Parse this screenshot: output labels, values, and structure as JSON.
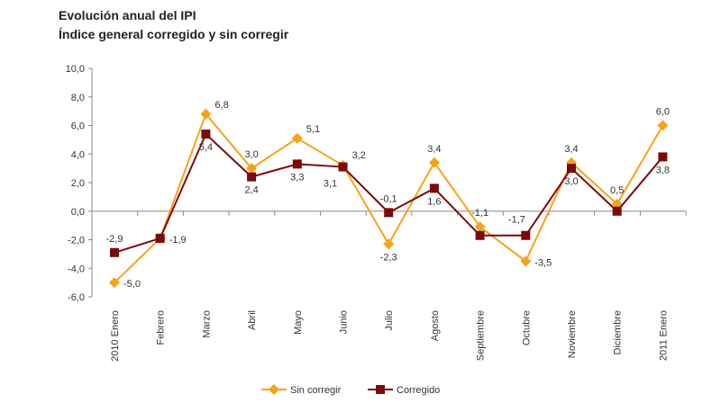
{
  "chart_data": {
    "type": "line",
    "title": "Evolución anual del IPI",
    "subtitle": "Índice general corregido y sin corregir",
    "categories": [
      "2010 Enero",
      "Febrero",
      "Marzo",
      "Abril",
      "Mayo",
      "Junio",
      "Julio",
      "Agosto",
      "Septiembre",
      "Octubre",
      "Noviembre",
      "Diciembre",
      "2011 Enero"
    ],
    "ylim": [
      -6,
      10
    ],
    "yticks": [
      "10,0",
      "8,0",
      "6,0",
      "4,0",
      "2,0",
      "0,0",
      "-2,0",
      "-4,0",
      "-6,0"
    ],
    "grid": false,
    "legend": "bottom",
    "series": [
      {
        "name": "Sin corregir",
        "color": "#F7A21B",
        "marker": "diamond",
        "values": [
          -5.0,
          -1.9,
          6.8,
          3.0,
          5.1,
          3.2,
          -2.3,
          3.4,
          -1.1,
          -3.5,
          3.4,
          0.5,
          6.0
        ],
        "labels": [
          "-5,0",
          "",
          "6,8",
          "3,0",
          "5,1",
          "3,2",
          "-2,3",
          "3,4",
          "-1,1",
          "-3,5",
          "3,4",
          "0,5",
          "6,0"
        ]
      },
      {
        "name": "Corregido",
        "color": "#7B0A0A",
        "marker": "square",
        "values": [
          -2.9,
          -1.9,
          5.4,
          2.4,
          3.3,
          3.1,
          -0.1,
          1.6,
          -1.7,
          -1.7,
          3.0,
          0.0,
          3.8
        ],
        "labels": [
          "-2,9",
          "-1,9",
          "5,4",
          "2,4",
          "3,3",
          "3,1",
          "-0,1",
          "1,6",
          "",
          "-1,7",
          "3,0",
          "",
          "3,8"
        ]
      }
    ]
  }
}
